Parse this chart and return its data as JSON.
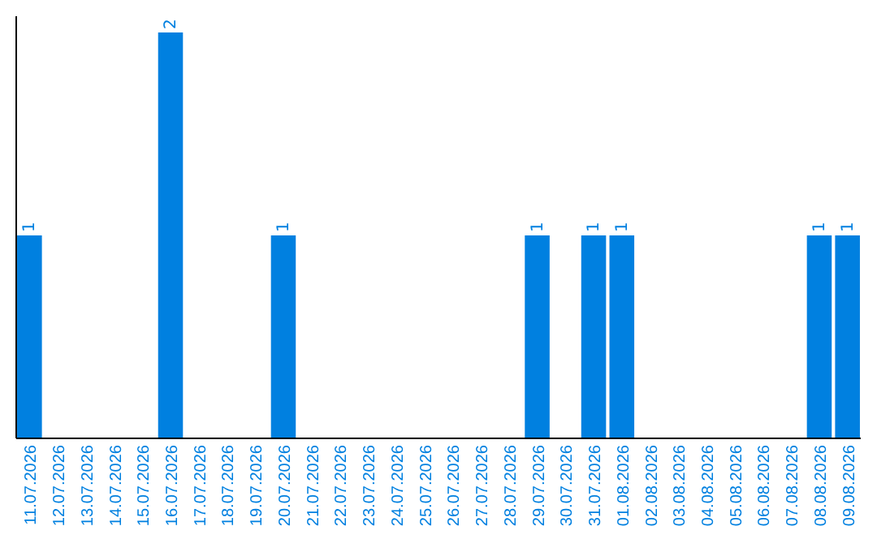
{
  "chart_data": {
    "type": "bar",
    "categories": [
      "11.07.2026",
      "12.07.2026",
      "13.07.2026",
      "14.07.2026",
      "15.07.2026",
      "16.07.2026",
      "17.07.2026",
      "18.07.2026",
      "19.07.2026",
      "20.07.2026",
      "21.07.2026",
      "22.07.2026",
      "23.07.2026",
      "24.07.2026",
      "25.07.2026",
      "26.07.2026",
      "27.07.2026",
      "28.07.2026",
      "29.07.2026",
      "30.07.2026",
      "31.07.2026",
      "01.08.2026",
      "02.08.2026",
      "03.08.2026",
      "04.08.2026",
      "05.08.2026",
      "06.08.2026",
      "07.08.2026",
      "08.08.2026",
      "09.08.2026"
    ],
    "values": [
      1,
      0,
      0,
      0,
      0,
      2,
      0,
      0,
      0,
      1,
      0,
      0,
      0,
      0,
      0,
      0,
      0,
      0,
      1,
      0,
      1,
      1,
      0,
      0,
      0,
      0,
      0,
      0,
      1,
      1
    ],
    "value_labels": [
      "1",
      null,
      null,
      null,
      null,
      "2",
      null,
      null,
      null,
      "1",
      null,
      null,
      null,
      null,
      null,
      null,
      null,
      null,
      "1",
      null,
      "1",
      "1",
      null,
      null,
      null,
      null,
      null,
      null,
      "1",
      "1"
    ],
    "color": "#0080e0",
    "ylim": [
      0,
      2.08
    ],
    "tick_labels": "x"
  }
}
